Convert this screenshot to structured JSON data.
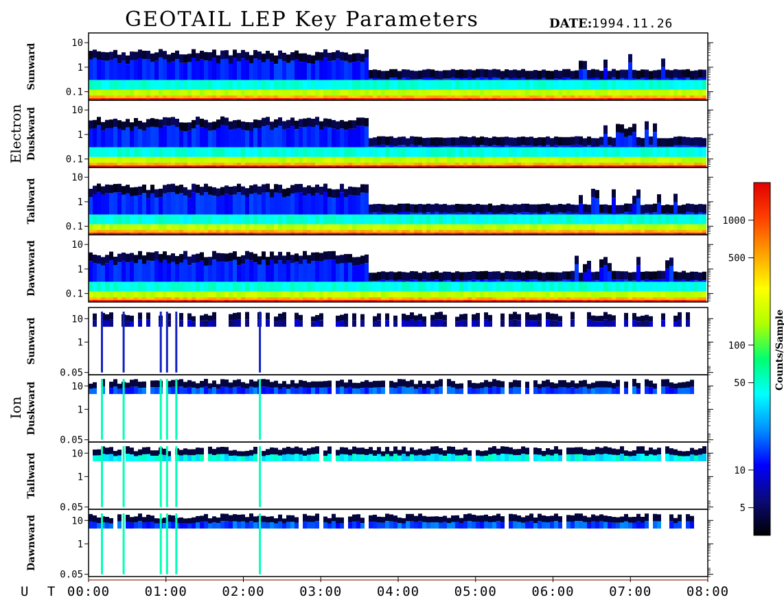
{
  "header": {
    "title": "GEOTAIL LEP Key Parameters",
    "date_label": "DATE:",
    "date_value": "1994.11.26"
  },
  "chart_data": {
    "type": "heatmap",
    "x_axis": {
      "label": "U T",
      "range": [
        "00:00",
        "08:00"
      ],
      "ticks": [
        "00:00",
        "01:00",
        "02:00",
        "03:00",
        "04:00",
        "05:00",
        "06:00",
        "07:00",
        "08:00"
      ]
    },
    "colorbar": {
      "label": "Counts/Sample",
      "scale": "log",
      "ticks": [
        "5",
        "10",
        "50",
        "100",
        "500",
        "1000"
      ],
      "tick_values": [
        5,
        10,
        50,
        100,
        500,
        1000
      ],
      "range": [
        3,
        2000
      ],
      "colors": [
        "#000000",
        "#0a0a7a",
        "#0000ff",
        "#0090ff",
        "#00ffff",
        "#00ff70",
        "#b0ff00",
        "#ffff00",
        "#ffa000",
        "#ff4000",
        "#e00000"
      ]
    },
    "groups": [
      {
        "name": "Electron",
        "y_scale": "log",
        "y_ticks": [
          "10",
          "1",
          "0.1"
        ],
        "y_tick_values": [
          10,
          1,
          0.1
        ],
        "y_range": [
          0.045,
          25
        ],
        "panels": [
          {
            "label": "Sunward"
          },
          {
            "label": "Duskward"
          },
          {
            "label": "Tailward"
          },
          {
            "label": "Dawnward"
          }
        ]
      },
      {
        "name": "Ion",
        "y_scale": "log",
        "y_ticks": [
          "10",
          "1",
          "0.05"
        ],
        "y_tick_values": [
          10,
          1,
          0.05
        ],
        "y_range": [
          0.04,
          30
        ],
        "panels": [
          {
            "label": "Sunward"
          },
          {
            "label": "Duskward"
          },
          {
            "label": "Tailward"
          },
          {
            "label": "Dawnward"
          }
        ]
      }
    ]
  }
}
